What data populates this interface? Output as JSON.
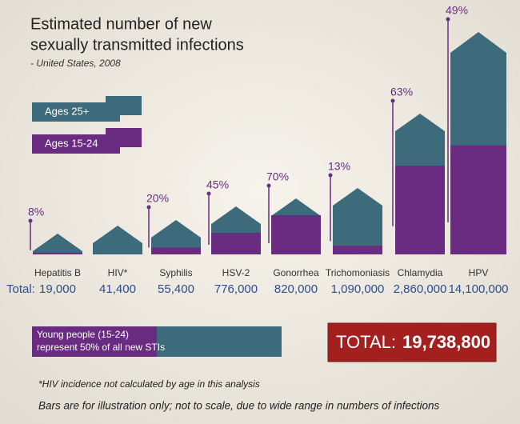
{
  "chart_data": {
    "type": "bar",
    "title_lines": [
      "Estimated number of new",
      "sexually transmitted infections"
    ],
    "subtitle": "- United States, 2008",
    "legend": [
      {
        "name": "Ages 25+",
        "color": "#3d6b7c"
      },
      {
        "name": "Ages 15-24",
        "color": "#6a2c80"
      }
    ],
    "categories": [
      "Hepatitis B",
      "HIV*",
      "Syphilis",
      "HSV-2",
      "Gonorrhea",
      "Trichomoniasis",
      "Chlamydia",
      "HPV"
    ],
    "values": [
      8,
      null,
      20,
      45,
      70,
      13,
      63,
      49
    ],
    "value_labels": [
      "8%",
      null,
      "20%",
      "45%",
      "70%",
      "13%",
      "63%",
      "49%"
    ],
    "total_label": "Total:",
    "totals": [
      19000,
      41400,
      55400,
      776000,
      820000,
      1090000,
      2860000,
      14100000
    ],
    "total_labels": [
      "19,000",
      "41,400",
      "55,400",
      "776,000",
      "820,000",
      "1,090,000",
      "2,860,000",
      "14,100,000"
    ],
    "young_share": 50,
    "young_note_lines": [
      "Young people (15-24)",
      "represent 50% of all new STIs"
    ],
    "grand_total": {
      "label": "TOTAL:",
      "value": 19738800,
      "value_label": "19,738,800"
    },
    "footnote": "*HIV incidence not calculated by age in this analysis",
    "disclaimer": "Bars are for illustration only; not to scale, due to wide range in numbers of infections"
  }
}
